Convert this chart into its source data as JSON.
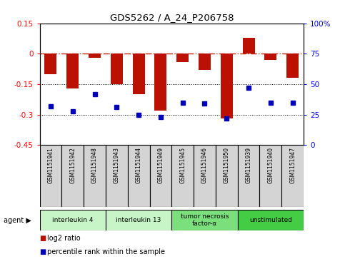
{
  "title": "GDS5262 / A_24_P206758",
  "samples": [
    "GSM1151941",
    "GSM1151942",
    "GSM1151948",
    "GSM1151943",
    "GSM1151944",
    "GSM1151949",
    "GSM1151945",
    "GSM1151946",
    "GSM1151950",
    "GSM1151939",
    "GSM1151940",
    "GSM1151947"
  ],
  "log2_ratio": [
    -0.1,
    -0.17,
    -0.02,
    -0.15,
    -0.2,
    -0.28,
    -0.04,
    -0.08,
    -0.32,
    0.08,
    -0.03,
    -0.12
  ],
  "percentile": [
    32,
    28,
    42,
    31,
    25,
    23,
    35,
    34,
    22,
    47,
    35,
    35
  ],
  "ylim_left": [
    -0.45,
    0.15
  ],
  "ylim_right": [
    0,
    100
  ],
  "yticks_left": [
    0.15,
    0.0,
    -0.15,
    -0.3,
    -0.45
  ],
  "yticks_right": [
    100,
    75,
    50,
    25,
    0
  ],
  "agents": [
    {
      "label": "interleukin 4",
      "start": 0,
      "end": 3,
      "color": "#c8f5c8"
    },
    {
      "label": "interleukin 13",
      "start": 3,
      "end": 6,
      "color": "#c8f5c8"
    },
    {
      "label": "tumor necrosis\nfactor-α",
      "start": 6,
      "end": 9,
      "color": "#7be07b"
    },
    {
      "label": "unstimulated",
      "start": 9,
      "end": 12,
      "color": "#44cc44"
    }
  ],
  "bar_color": "#bb1100",
  "dot_color": "#0000bb",
  "zero_line_color": "#cc2200",
  "hline_color": "#000000",
  "sample_bg_color": "#d4d4d4",
  "background_color": "#ffffff",
  "legend_bar_label": "log2 ratio",
  "legend_dot_label": "percentile rank within the sample"
}
